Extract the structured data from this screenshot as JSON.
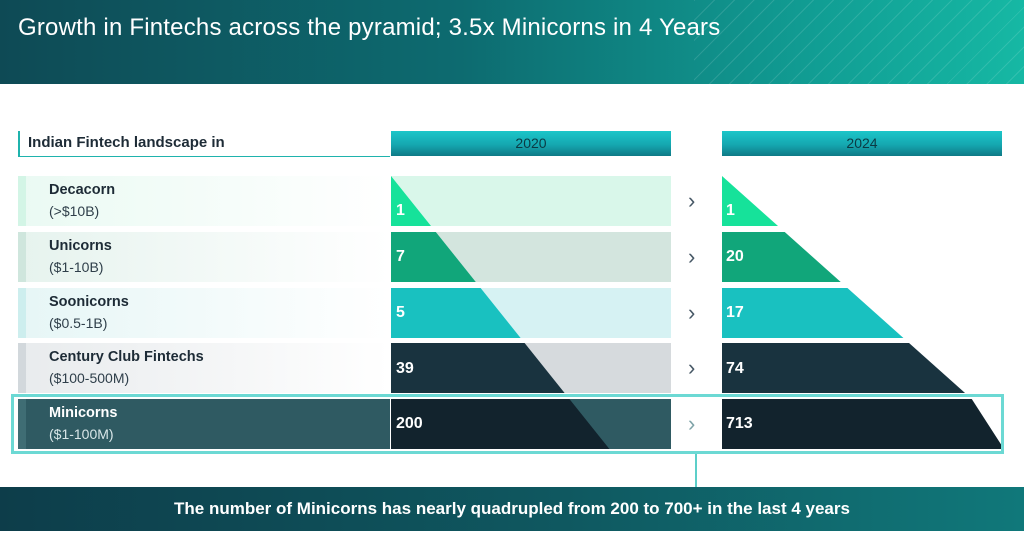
{
  "header": {
    "title": "Growth in Fintechs across the pyramid; 3.5x Minicorns in 4 Years"
  },
  "landscape_label": "Indian Fintech landscape in",
  "footer": {
    "text": "The number of Minicorns has nearly quadrupled from 200 to 700+ in the last 4 years"
  },
  "colors": {
    "decacorn": "#16e29a",
    "unicorns": "#11a67a",
    "soonicorns": "#19c1c0",
    "century": "#19333f",
    "minicorns": "#12232d"
  },
  "chart_data": {
    "type": "table",
    "title": "Indian Fintech landscape in",
    "columns": [
      "2020",
      "2024"
    ],
    "rows": [
      {
        "name": "Decacorn",
        "range": "(>$10B)",
        "values": [
          1,
          1
        ]
      },
      {
        "name": "Unicorns",
        "range": "($1-10B)",
        "values": [
          7,
          20
        ]
      },
      {
        "name": "Soonicorns",
        "range": "($0.5-1B)",
        "values": [
          5,
          17
        ]
      },
      {
        "name": "Century Club Fintechs",
        "range": "($100-500M)",
        "values": [
          39,
          74
        ]
      },
      {
        "name": "Minicorns",
        "range": "($1-100M)",
        "values": [
          200,
          713
        ]
      }
    ]
  }
}
